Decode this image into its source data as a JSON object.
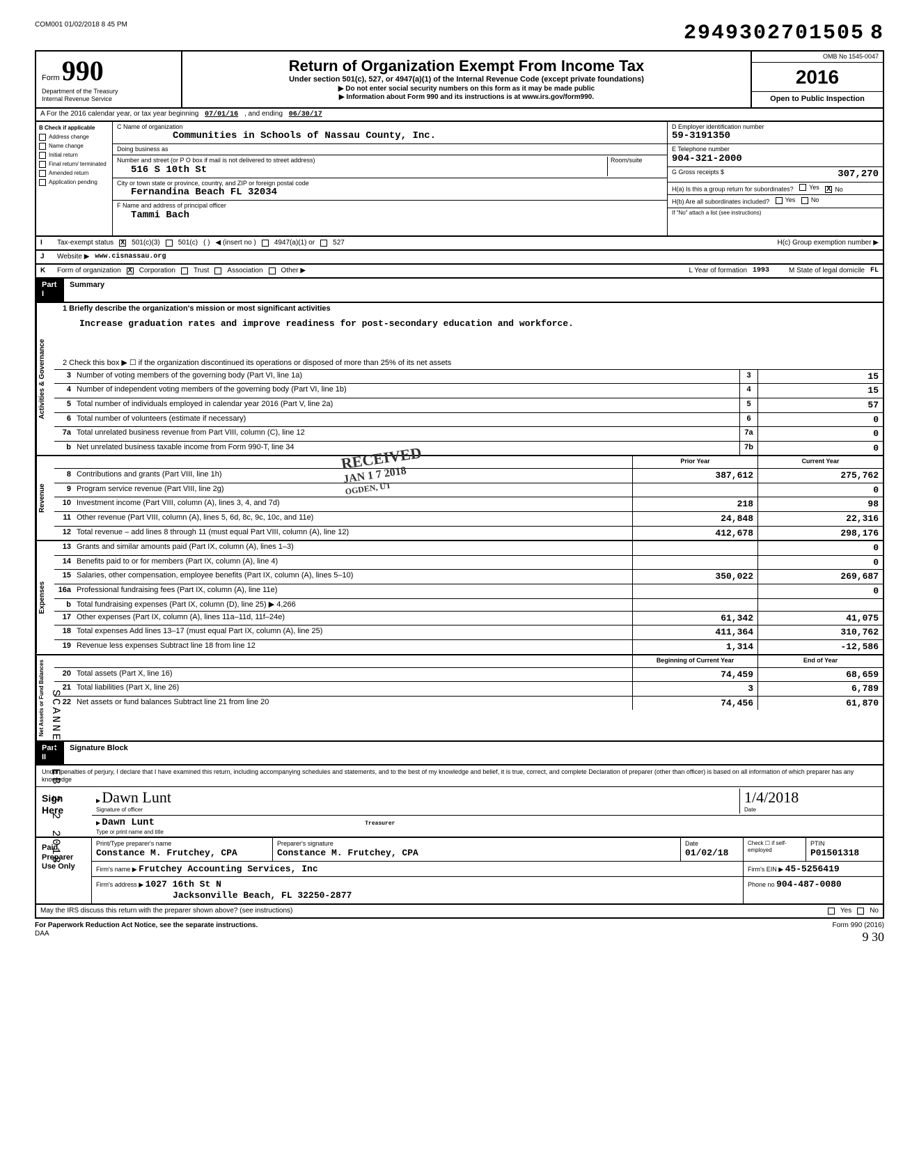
{
  "meta": {
    "timestamp": "COM001 01/02/2018 8 45 PM",
    "big_number": "2949302701505",
    "big_number_suffix": "8",
    "scanned_stamp": "SCANNED FEB 2 2 2018"
  },
  "header": {
    "form_word": "Form",
    "form_number": "990",
    "dept1": "Department of the Treasury",
    "dept2": "Internal Revenue Service",
    "title": "Return of Organization Exempt From Income Tax",
    "subtitle": "Under section 501(c), 527, or 4947(a)(1) of the Internal Revenue Code (except private foundations)",
    "note1": "▶ Do not enter social security numbers on this form as it may be made public",
    "note2": "▶ Information about Form 990 and its instructions is at www.irs.gov/form990.",
    "omb": "OMB No 1545-0047",
    "year": "2016",
    "open_public": "Open to Public Inspection"
  },
  "rowA": {
    "label": "A   For the 2016 calendar year, or tax year beginning",
    "begin": "07/01/16",
    "mid": ", and ending",
    "end": "06/30/17"
  },
  "colB": {
    "label": "B   Check if applicable",
    "items": [
      "Address change",
      "Name change",
      "Initial return",
      "Final return/ terminated",
      "Amended return",
      "Application pending"
    ]
  },
  "colC": {
    "c_label": "C Name of organization",
    "org_name": "Communities in Schools of Nassau County, Inc.",
    "dba_label": "Doing business as",
    "street_label": "Number and street (or P O box if mail is not delivered to street address)",
    "room_label": "Room/suite",
    "street": "516 S 10th St",
    "city_label": "City or town state or province, country, and ZIP or foreign postal code",
    "city": "Fernandina Beach     FL 32034",
    "officer_label": "F Name and address of principal officer",
    "officer": "Tammi Bach"
  },
  "colD": {
    "d_label": "D Employer identification number",
    "ein": "59-3191350",
    "e_label": "E Telephone number",
    "phone": "904-321-2000",
    "g_label": "G Gross receipts $",
    "gross": "307,270",
    "ha_label": "H(a) Is this a group return for subordinates?",
    "hb_label": "H(b) Are all subordinates included?",
    "hnote": "If \"No\" attach a list (see instructions)",
    "hc_label": "H(c) Group exemption number ▶",
    "yes": "Yes",
    "no": "No"
  },
  "rowI": {
    "label": "Tax-exempt status",
    "opt1": "501(c)(3)",
    "opt2": "501(c)",
    "insert": "◀ (insert no )",
    "opt3": "4947(a)(1) or",
    "opt4": "527"
  },
  "rowJ": {
    "label": "Website ▶",
    "value": "www.cisnassau.org"
  },
  "rowK": {
    "label": "Form of organization",
    "opt1": "Corporation",
    "opt2": "Trust",
    "opt3": "Association",
    "opt4": "Other ▶",
    "l_label": "L   Year of formation",
    "l_value": "1993",
    "m_label": "M   State of legal domicile",
    "m_value": "FL"
  },
  "part1": {
    "part": "Part I",
    "title": "Summary",
    "line1_label": "1   Briefly describe the organization's mission or most significant activities",
    "mission": "Increase graduation rates and improve readiness for post-secondary education and workforce.",
    "line2": "2   Check this box ▶ ☐  if the organization discontinued its operations or disposed of more than 25% of its net assets",
    "governance_label": "Activities & Governance",
    "revenue_label": "Revenue",
    "expenses_label": "Expenses",
    "netassets_label": "Net Assets or Fund Balances",
    "prior_year": "Prior Year",
    "current_year": "Current Year",
    "begin_year": "Beginning of Current Year",
    "end_year": "End of Year",
    "lines_gov": [
      {
        "n": "3",
        "d": "Number of voting members of the governing body (Part VI, line 1a)",
        "b": "3",
        "v": "15"
      },
      {
        "n": "4",
        "d": "Number of independent voting members of the governing body (Part VI, line 1b)",
        "b": "4",
        "v": "15"
      },
      {
        "n": "5",
        "d": "Total number of individuals employed in calendar year 2016 (Part V, line 2a)",
        "b": "5",
        "v": "57"
      },
      {
        "n": "6",
        "d": "Total number of volunteers (estimate if necessary)",
        "b": "6",
        "v": "0"
      },
      {
        "n": "7a",
        "d": "Total unrelated business revenue from Part VIII, column (C), line 12",
        "b": "7a",
        "v": "0"
      },
      {
        "n": "b",
        "d": "Net unrelated business taxable income from Form 990-T, line 34",
        "b": "7b",
        "v": "0"
      }
    ],
    "lines_rev": [
      {
        "n": "8",
        "d": "Contributions and grants (Part VIII, line 1h)",
        "p": "387,612",
        "c": "275,762"
      },
      {
        "n": "9",
        "d": "Program service revenue (Part VIII, line 2g)",
        "p": "",
        "c": "0"
      },
      {
        "n": "10",
        "d": "Investment income (Part VIII, column (A), lines 3, 4, and 7d)",
        "p": "218",
        "c": "98"
      },
      {
        "n": "11",
        "d": "Other revenue (Part VIII, column (A), lines 5, 6d, 8c, 9c, 10c, and 11e)",
        "p": "24,848",
        "c": "22,316"
      },
      {
        "n": "12",
        "d": "Total revenue – add lines 8 through 11 (must equal Part VIII, column (A), line 12)",
        "p": "412,678",
        "c": "298,176"
      }
    ],
    "lines_exp": [
      {
        "n": "13",
        "d": "Grants and similar amounts paid (Part IX, column (A), lines 1–3)",
        "p": "",
        "c": "0"
      },
      {
        "n": "14",
        "d": "Benefits paid to or for members (Part IX, column (A), line 4)",
        "p": "",
        "c": "0"
      },
      {
        "n": "15",
        "d": "Salaries, other compensation, employee benefits (Part IX, column (A), lines 5–10)",
        "p": "350,022",
        "c": "269,687"
      },
      {
        "n": "16a",
        "d": "Professional fundraising fees (Part IX, column (A), line 11e)",
        "p": "",
        "c": "0"
      },
      {
        "n": "b",
        "d": "Total fundraising expenses (Part IX, column (D), line 25) ▶            4,266",
        "p": "",
        "c": ""
      },
      {
        "n": "17",
        "d": "Other expenses (Part IX, column (A), lines 11a–11d, 11f–24e)",
        "p": "61,342",
        "c": "41,075"
      },
      {
        "n": "18",
        "d": "Total expenses Add lines 13–17 (must equal Part IX, column (A), line 25)",
        "p": "411,364",
        "c": "310,762"
      },
      {
        "n": "19",
        "d": "Revenue less expenses Subtract line 18 from line 12",
        "p": "1,314",
        "c": "-12,586"
      }
    ],
    "lines_net": [
      {
        "n": "20",
        "d": "Total assets (Part X, line 16)",
        "p": "74,459",
        "c": "68,659"
      },
      {
        "n": "21",
        "d": "Total liabilities (Part X, line 26)",
        "p": "3",
        "c": "6,789"
      },
      {
        "n": "22",
        "d": "Net assets or fund balances Subtract line 21 from line 20",
        "p": "74,456",
        "c": "61,870"
      }
    ],
    "received_stamp": "RECEIVED",
    "received_date": "JAN 1 7 2018",
    "received_org": "OGDEN, UT"
  },
  "part2": {
    "part": "Part II",
    "title": "Signature Block",
    "declaration": "Under penalties of perjury, I declare that I have examined this return, including accompanying schedules and statements, and to the best of my knowledge and belief, it is true, correct, and complete Declaration of preparer (other than officer) is based on all information of which preparer has any knowledge",
    "sign_here": "Sign Here",
    "sig_label": "Signature of officer",
    "sig_script": "Dawn Lunt",
    "date_label": "Date",
    "date_value": "1/4/2018",
    "name_label": "Type or print name and title",
    "name_value": "Dawn Lunt",
    "title_value": "Treasurer"
  },
  "preparer": {
    "left": "Paid Preparer Use Only",
    "h_name": "Print/Type preparer's name",
    "h_sig": "Preparer's signature",
    "h_date": "Date",
    "h_check": "Check ☐ if self-employed",
    "h_ptin": "PTIN",
    "name": "Constance M. Frutchey, CPA",
    "sig": "Constance M. Frutchey, CPA",
    "date": "01/02/18",
    "ptin": "P01501318",
    "firm_label": "Firm's name   ▶",
    "firm": "Frutchey Accounting Services, Inc",
    "ein_label": "Firm's EIN ▶",
    "ein": "45-5256419",
    "addr_label": "Firm's address   ▶",
    "addr1": "1027 16th St N",
    "addr2": "Jacksonville Beach, FL   32250-2877",
    "phone_label": "Phone no",
    "phone": "904-487-0080"
  },
  "footer": {
    "discuss": "May the IRS discuss this return with the preparer shown above? (see instructions)",
    "yes": "Yes",
    "no": "No",
    "pra": "For Paperwork Reduction Act Notice, see the separate instructions.",
    "daa": "DAA",
    "form": "Form 990 (2016)",
    "handwrite": "9 30"
  }
}
